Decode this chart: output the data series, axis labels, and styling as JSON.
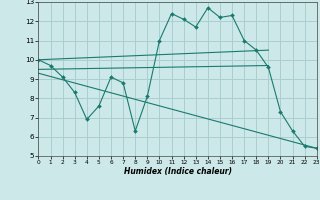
{
  "xlabel": "Humidex (Indice chaleur)",
  "xlim": [
    0,
    23
  ],
  "ylim": [
    5,
    13
  ],
  "yticks": [
    5,
    6,
    7,
    8,
    9,
    10,
    11,
    12,
    13
  ],
  "xticks": [
    0,
    1,
    2,
    3,
    4,
    5,
    6,
    7,
    8,
    9,
    10,
    11,
    12,
    13,
    14,
    15,
    16,
    17,
    18,
    19,
    20,
    21,
    22,
    23
  ],
  "bg_color": "#cce8e8",
  "line_color": "#1a7a6e",
  "grid_color": "#aacfcf",
  "series": {
    "jagged": {
      "x": [
        0,
        1,
        2,
        3,
        4,
        5,
        6,
        7,
        8,
        9,
        10,
        11,
        12,
        13,
        14,
        15,
        16,
        17,
        18,
        19,
        20,
        21,
        22,
        23
      ],
      "y": [
        10.0,
        9.7,
        9.1,
        8.3,
        6.9,
        7.6,
        9.1,
        8.8,
        6.3,
        8.1,
        11.0,
        12.4,
        12.1,
        11.7,
        12.7,
        12.2,
        12.3,
        11.0,
        10.5,
        9.6,
        7.3,
        6.3,
        5.5,
        5.4
      ]
    },
    "upper_linear": {
      "x": [
        0,
        19
      ],
      "y": [
        10.0,
        10.5
      ]
    },
    "mid_linear": {
      "x": [
        0,
        19
      ],
      "y": [
        9.5,
        9.7
      ]
    },
    "lower_linear": {
      "x": [
        0,
        23
      ],
      "y": [
        9.3,
        5.4
      ]
    }
  }
}
